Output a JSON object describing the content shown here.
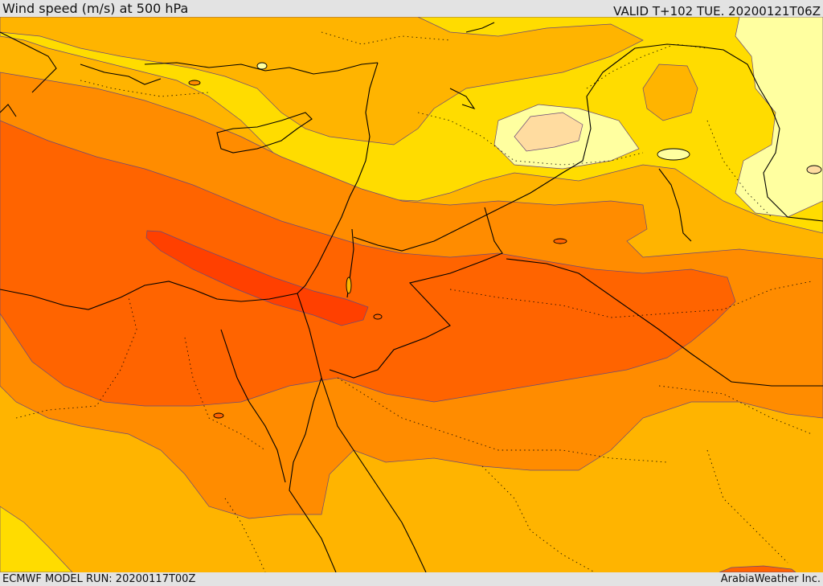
{
  "header": {
    "title": "Wind speed (m/s) at 500 hPa",
    "valid_time": "VALID T+102 TUE. 20200121T06Z"
  },
  "footer": {
    "model_run": "ECMWF MODEL RUN: 20200117T00Z",
    "credit": "ArabiaWeather Inc."
  },
  "map": {
    "field": "wind speed",
    "level": "500 hPa",
    "units": "m/s",
    "color_bands": {
      "weakest": "#ffffa0",
      "weak_pale": "#ffdca0",
      "light": "#ffdc00",
      "moderate": "#ffb400",
      "strong": "#ff8c00",
      "very_strong": "#ff6400",
      "jet_core": "#ff4000"
    },
    "contour_line_color": "#6a4a7a",
    "coastline_color": "#000000",
    "border_style": "dotted"
  }
}
